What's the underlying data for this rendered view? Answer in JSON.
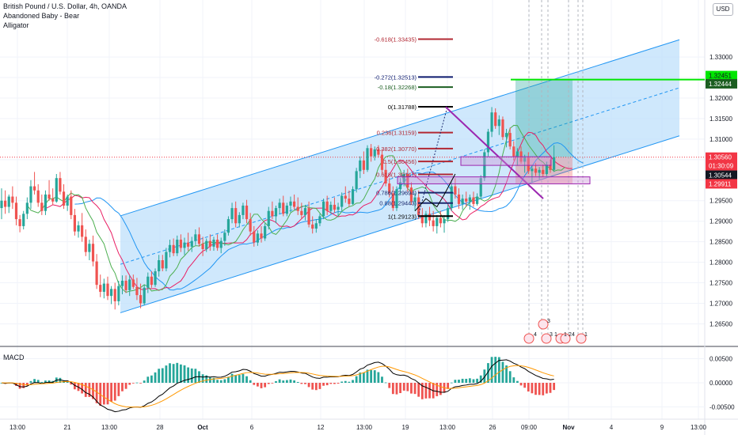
{
  "header": {
    "symbol_title": "British Pound / U.S. Dollar, 4h, OANDA",
    "indicator_1": "Abandoned Baby - Bear",
    "indicator_2": "Alligator",
    "currency_button": "USD"
  },
  "macd_panel": {
    "label": "MACD"
  },
  "colors": {
    "up_candle": "#26a69a",
    "down_candle": "#ef5350",
    "channel_fill": "#bbdefb",
    "channel_line": "#2196f3",
    "target_green": "#00e600",
    "price_red": "#f23645",
    "trend_purple": "#9c27b0",
    "macd_line": "#000000",
    "signal_line": "#ff9800"
  },
  "chart_data": {
    "type": "candlestick",
    "symbol": "GBPUSD",
    "timeframe": "4h",
    "price_axis": {
      "range": [
        1.2595,
        1.3435
      ],
      "ticks": [
        "1.33000",
        "1.32500",
        "1.32000",
        "1.31500",
        "1.31000",
        "1.30500",
        "1.30000",
        "1.29500",
        "1.29000",
        "1.28500",
        "1.28000",
        "1.27500",
        "1.27000",
        "1.26500"
      ],
      "tick_values": [
        1.33,
        1.325,
        1.32,
        1.315,
        1.31,
        1.305,
        1.3,
        1.295,
        1.29,
        1.285,
        1.28,
        1.275,
        1.27,
        1.265
      ]
    },
    "time_axis": {
      "labels": [
        "13:00",
        "21",
        "13:00",
        "28",
        "Oct",
        "6",
        "12",
        "13:00",
        "19",
        "13:00",
        "26",
        "09:00",
        "Nov",
        "4",
        "9",
        "13:00"
      ]
    },
    "price_labels": [
      {
        "text": "1.32451",
        "kind": "green",
        "value": 1.32451
      },
      {
        "text": "1.32444",
        "kind": "dark-green",
        "value": 1.32444
      },
      {
        "text": "1.30560",
        "kind": "red",
        "value": 1.3056
      },
      {
        "text": "01:30:09",
        "kind": "red-timer",
        "value": 1.3036
      },
      {
        "text": "1.30544",
        "kind": "dark",
        "value": 1.30544
      },
      {
        "text": "1.29911",
        "kind": "red",
        "value": 1.29911
      }
    ],
    "fibonacci": [
      {
        "label": "-0.618(1.33435)",
        "value": 1.33435,
        "color": "#b22833"
      },
      {
        "label": "-0.272(1.32513)",
        "value": 1.32513,
        "color": "#0d1a6e"
      },
      {
        "label": "-0.18(1.32268)",
        "value": 1.32268,
        "color": "#1b5e20"
      },
      {
        "label": "0(1.31788)",
        "value": 1.31788,
        "color": "#000000"
      },
      {
        "label": "0.236(1.31159)",
        "value": 1.31159,
        "color": "#b22833"
      },
      {
        "label": "0.382(1.30770)",
        "value": 1.3077,
        "color": "#b22833"
      },
      {
        "label": "0.5(1.30456)",
        "value": 1.30456,
        "color": "#b22833"
      },
      {
        "label": "0.618(1.30141)",
        "value": 1.30141,
        "color": "#b22833"
      },
      {
        "label": "0.786(1.29694)",
        "value": 1.29694,
        "color": "#1b2a6e"
      },
      {
        "label": "0.88(1.29443)",
        "value": 1.29443,
        "color": "#1b2a6e"
      },
      {
        "label": "1(1.29123)",
        "value": 1.29123,
        "color": "#000000"
      }
    ],
    "candles_ohlc": [
      [
        1.2932,
        1.298,
        1.2905,
        1.295
      ],
      [
        1.295,
        1.2975,
        1.2918,
        1.2935
      ],
      [
        1.2935,
        1.2965,
        1.292,
        1.296
      ],
      [
        1.296,
        1.2985,
        1.293,
        1.2945
      ],
      [
        1.2945,
        1.296,
        1.289,
        1.2905
      ],
      [
        1.2905,
        1.2915,
        1.2873,
        1.2888
      ],
      [
        1.2888,
        1.2925,
        1.288,
        1.2918
      ],
      [
        1.2918,
        1.2958,
        1.2905,
        1.2945
      ],
      [
        1.2945,
        1.3,
        1.293,
        1.2985
      ],
      [
        1.2985,
        1.302,
        1.2965,
        1.2975
      ],
      [
        1.2975,
        1.299,
        1.2935,
        1.2945
      ],
      [
        1.2945,
        1.2965,
        1.2915,
        1.2925
      ],
      [
        1.2925,
        1.2975,
        1.2915,
        1.2965
      ],
      [
        1.2965,
        1.3,
        1.295,
        1.2955
      ],
      [
        1.2955,
        1.298,
        1.294,
        1.2948
      ],
      [
        1.2948,
        1.3015,
        1.2945,
        1.3005
      ],
      [
        1.3005,
        1.302,
        1.2965,
        1.2972
      ],
      [
        1.2972,
        1.299,
        1.293,
        1.2938
      ],
      [
        1.2938,
        1.2965,
        1.2925,
        1.296
      ],
      [
        1.296,
        1.2975,
        1.2905,
        1.2915
      ],
      [
        1.2915,
        1.293,
        1.2865,
        1.2875
      ],
      [
        1.2875,
        1.29,
        1.286,
        1.289
      ],
      [
        1.289,
        1.292,
        1.285,
        1.2862
      ],
      [
        1.2862,
        1.288,
        1.2815,
        1.2825
      ],
      [
        1.2825,
        1.2855,
        1.2805,
        1.2845
      ],
      [
        1.2845,
        1.2865,
        1.279,
        1.2802
      ],
      [
        1.2802,
        1.282,
        1.2735,
        1.2745
      ],
      [
        1.2745,
        1.277,
        1.2715,
        1.2728
      ],
      [
        1.2728,
        1.276,
        1.2712,
        1.2748
      ],
      [
        1.2748,
        1.2765,
        1.2708,
        1.2718
      ],
      [
        1.2718,
        1.2742,
        1.2698,
        1.2735
      ],
      [
        1.2735,
        1.275,
        1.2685,
        1.2705
      ],
      [
        1.2705,
        1.2755,
        1.2695,
        1.2742
      ],
      [
        1.2742,
        1.2768,
        1.2722,
        1.2755
      ],
      [
        1.2755,
        1.2768,
        1.2725,
        1.2732
      ],
      [
        1.2732,
        1.2768,
        1.2718,
        1.2758
      ],
      [
        1.2758,
        1.277,
        1.2735,
        1.274
      ],
      [
        1.274,
        1.2762,
        1.2708,
        1.272
      ],
      [
        1.272,
        1.2748,
        1.2688,
        1.27
      ],
      [
        1.27,
        1.2745,
        1.2695,
        1.2738
      ],
      [
        1.2738,
        1.2775,
        1.2725,
        1.2765
      ],
      [
        1.2765,
        1.2778,
        1.2738,
        1.2745
      ],
      [
        1.2745,
        1.2785,
        1.274,
        1.2778
      ],
      [
        1.2778,
        1.2818,
        1.2765,
        1.2805
      ],
      [
        1.2805,
        1.2818,
        1.2778,
        1.2785
      ],
      [
        1.2785,
        1.2835,
        1.2778,
        1.2825
      ],
      [
        1.2825,
        1.2855,
        1.2812,
        1.2842
      ],
      [
        1.2842,
        1.2858,
        1.2815,
        1.2822
      ],
      [
        1.2822,
        1.2865,
        1.2815,
        1.2855
      ],
      [
        1.2855,
        1.2868,
        1.2825,
        1.2835
      ],
      [
        1.2835,
        1.286,
        1.2818,
        1.2848
      ],
      [
        1.2848,
        1.2872,
        1.2828,
        1.2838
      ],
      [
        1.2838,
        1.2862,
        1.2825,
        1.2852
      ],
      [
        1.2852,
        1.288,
        1.2842,
        1.2868
      ],
      [
        1.2868,
        1.2885,
        1.2838,
        1.2845
      ],
      [
        1.2845,
        1.2862,
        1.2815,
        1.2832
      ],
      [
        1.2832,
        1.2858,
        1.2825,
        1.2852
      ],
      [
        1.2852,
        1.2868,
        1.2828,
        1.2838
      ],
      [
        1.2838,
        1.2862,
        1.2828,
        1.2855
      ],
      [
        1.2855,
        1.2868,
        1.2828,
        1.2835
      ],
      [
        1.2835,
        1.286,
        1.2822,
        1.2852
      ],
      [
        1.2852,
        1.288,
        1.284,
        1.2872
      ],
      [
        1.2872,
        1.2912,
        1.2865,
        1.2905
      ],
      [
        1.2905,
        1.2945,
        1.2895,
        1.2932
      ],
      [
        1.2932,
        1.2948,
        1.2885,
        1.2895
      ],
      [
        1.2895,
        1.2922,
        1.2885,
        1.2915
      ],
      [
        1.2915,
        1.2945,
        1.2905,
        1.2938
      ],
      [
        1.2938,
        1.2952,
        1.2895,
        1.2905
      ],
      [
        1.2905,
        1.292,
        1.2865,
        1.2875
      ],
      [
        1.2875,
        1.2888,
        1.2838,
        1.2848
      ],
      [
        1.2848,
        1.2878,
        1.284,
        1.287
      ],
      [
        1.287,
        1.2888,
        1.2848,
        1.2858
      ],
      [
        1.2858,
        1.2895,
        1.2852,
        1.2888
      ],
      [
        1.2888,
        1.2935,
        1.288,
        1.2925
      ],
      [
        1.2925,
        1.2948,
        1.2905,
        1.2912
      ],
      [
        1.2912,
        1.2938,
        1.2895,
        1.2932
      ],
      [
        1.2932,
        1.2955,
        1.2918,
        1.2945
      ],
      [
        1.2945,
        1.2962,
        1.2912,
        1.2918
      ],
      [
        1.2918,
        1.2945,
        1.2912,
        1.2938
      ],
      [
        1.2938,
        1.296,
        1.2922,
        1.2948
      ],
      [
        1.2948,
        1.2965,
        1.2928,
        1.2935
      ],
      [
        1.2935,
        1.2958,
        1.2915,
        1.2925
      ],
      [
        1.2925,
        1.2945,
        1.2905,
        1.2915
      ],
      [
        1.2915,
        1.294,
        1.2902,
        1.2932
      ],
      [
        1.2932,
        1.2948,
        1.2885,
        1.2892
      ],
      [
        1.2892,
        1.2912,
        1.287,
        1.2882
      ],
      [
        1.2882,
        1.2905,
        1.2872,
        1.2895
      ],
      [
        1.2895,
        1.2918,
        1.2888,
        1.2912
      ],
      [
        1.2912,
        1.2955,
        1.2905,
        1.2948
      ],
      [
        1.2948,
        1.2962,
        1.2915,
        1.2925
      ],
      [
        1.2925,
        1.2948,
        1.2918,
        1.294
      ],
      [
        1.294,
        1.2958,
        1.292,
        1.2928
      ],
      [
        1.2928,
        1.2945,
        1.2912,
        1.2935
      ],
      [
        1.2935,
        1.297,
        1.2925,
        1.2962
      ],
      [
        1.2962,
        1.2985,
        1.2945,
        1.2955
      ],
      [
        1.2955,
        1.2975,
        1.2935,
        1.2942
      ],
      [
        1.2942,
        1.2985,
        1.294,
        1.2978
      ],
      [
        1.2978,
        1.303,
        1.297,
        1.3022
      ],
      [
        1.3022,
        1.3058,
        1.3005,
        1.3048
      ],
      [
        1.3048,
        1.307,
        1.3015,
        1.3025
      ],
      [
        1.3025,
        1.3085,
        1.302,
        1.3078
      ],
      [
        1.3078,
        1.3088,
        1.3045,
        1.3058
      ],
      [
        1.3058,
        1.3082,
        1.3048,
        1.3075
      ],
      [
        1.3075,
        1.3085,
        1.3055,
        1.3062
      ],
      [
        1.3062,
        1.3075,
        1.3015,
        1.3025
      ],
      [
        1.3025,
        1.3042,
        1.2985,
        1.2992
      ],
      [
        1.2992,
        1.3005,
        1.2958,
        1.2968
      ],
      [
        1.2968,
        1.2985,
        1.2925,
        1.2932
      ],
      [
        1.2932,
        1.2985,
        1.2925,
        1.2978
      ],
      [
        1.2978,
        1.3005,
        1.2965,
        1.2995
      ],
      [
        1.2995,
        1.3025,
        1.2985,
        1.3015
      ],
      [
        1.3015,
        1.3028,
        1.2972,
        1.2982
      ],
      [
        1.2982,
        1.2995,
        1.294,
        1.2948
      ],
      [
        1.2948,
        1.2968,
        1.2925,
        1.2958
      ],
      [
        1.2958,
        1.2975,
        1.2905,
        1.2915
      ],
      [
        1.2915,
        1.2932,
        1.2885,
        1.2895
      ],
      [
        1.2895,
        1.2925,
        1.2885,
        1.2918
      ],
      [
        1.2918,
        1.2935,
        1.2888,
        1.2902
      ],
      [
        1.2902,
        1.2925,
        1.2875,
        1.2888
      ],
      [
        1.2888,
        1.2915,
        1.287,
        1.2908
      ],
      [
        1.2908,
        1.2925,
        1.2885,
        1.2895
      ],
      [
        1.2895,
        1.2915,
        1.2872,
        1.2905
      ],
      [
        1.2905,
        1.294,
        1.2898,
        1.2932
      ],
      [
        1.2932,
        1.2995,
        1.2925,
        1.2985
      ],
      [
        1.2985,
        1.3005,
        1.2955,
        1.2965
      ],
      [
        1.2965,
        1.298,
        1.293,
        1.2942
      ],
      [
        1.2942,
        1.2965,
        1.2928,
        1.2955
      ],
      [
        1.2955,
        1.2972,
        1.2935,
        1.2948
      ],
      [
        1.2948,
        1.2965,
        1.2928,
        1.2958
      ],
      [
        1.2958,
        1.2972,
        1.2935,
        1.2942
      ],
      [
        1.2942,
        1.2968,
        1.2938,
        1.296
      ],
      [
        1.296,
        1.3012,
        1.2955,
        1.3005
      ],
      [
        1.3005,
        1.3075,
        1.2998,
        1.3068
      ],
      [
        1.3068,
        1.3125,
        1.3058,
        1.3118
      ],
      [
        1.3118,
        1.3178,
        1.3105,
        1.3165
      ],
      [
        1.3165,
        1.3175,
        1.3125,
        1.3132
      ],
      [
        1.3132,
        1.3158,
        1.311,
        1.3148
      ],
      [
        1.3148,
        1.3155,
        1.3098,
        1.3105
      ],
      [
        1.3105,
        1.3125,
        1.308,
        1.3115
      ],
      [
        1.3115,
        1.3128,
        1.3075,
        1.3082
      ],
      [
        1.3082,
        1.3095,
        1.3048,
        1.3058
      ],
      [
        1.3058,
        1.3078,
        1.3035,
        1.307
      ],
      [
        1.307,
        1.3082,
        1.304,
        1.3045
      ],
      [
        1.3045,
        1.3062,
        1.3018,
        1.3055
      ],
      [
        1.3055,
        1.3068,
        1.3015,
        1.3022
      ],
      [
        1.3022,
        1.3035,
        1.2995,
        1.3028
      ],
      [
        1.3028,
        1.3042,
        1.301,
        1.3018
      ],
      [
        1.3018,
        1.3032,
        1.3002,
        1.3025
      ],
      [
        1.3025,
        1.3038,
        1.3008,
        1.3015
      ],
      [
        1.3015,
        1.3045,
        1.301,
        1.3038
      ],
      [
        1.3038,
        1.305,
        1.3018,
        1.3025
      ],
      [
        1.3025,
        1.3085,
        1.302,
        1.3056
      ]
    ],
    "trend_channel": {
      "lower_start": 1.2677,
      "upper_start": 1.2913,
      "lower_end": 1.3108,
      "upper_end": 1.3342
    },
    "target_level": 1.32451,
    "macd": {
      "range": [
        -0.0072,
        0.0072
      ],
      "ticks": [
        "0.00500",
        "0.00000",
        "-0.00500"
      ],
      "tick_values": [
        0.005,
        0,
        -0.005
      ]
    },
    "event_counts": [
      "4",
      "3",
      "3",
      "1",
      "2",
      "1",
      "1",
      "4"
    ]
  }
}
